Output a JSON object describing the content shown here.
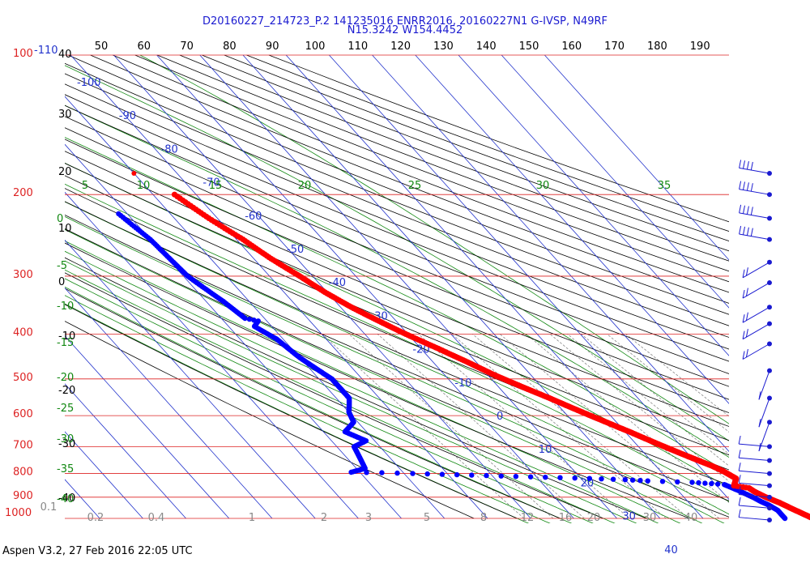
{
  "header": {
    "line1": "D20160227_214723_P.2 141235016 ENRR2016, 20160227N1 G-IVSP, N49RF",
    "line2": "N15.3242 W154.4452"
  },
  "footer": "Aspen V3.2, 27 Feb 2016  22:05 UTC",
  "colors": {
    "isobar": "#dd2222",
    "isotherm": "#2233cc",
    "dry_adiabat": "#000000",
    "moist_adiabat": "#118811",
    "mixing_ratio": "#888888",
    "temperature": "#ff0000",
    "dewpoint": "#0000ff",
    "wind": "#1a1ad0"
  },
  "chart_data": {
    "type": "skew-t log-p",
    "pressure_levels_hpa": [
      "100",
      "200",
      "300",
      "400",
      "500",
      "600",
      "700",
      "800",
      "900",
      "1000"
    ],
    "pressure_extra_label": "-110",
    "isotherm_labels_c": [
      "-100",
      "-90",
      "-80",
      "-70",
      "-60",
      "-50",
      "-40",
      "-30",
      "-20",
      "-10",
      "0",
      "10",
      "20",
      "30",
      "40"
    ],
    "theta_labels_top": [
      "50",
      "60",
      "70",
      "80",
      "90",
      "100",
      "110",
      "120",
      "130",
      "140",
      "150",
      "160",
      "170",
      "180",
      "190"
    ],
    "left_axis_labels": [
      "40",
      "30",
      "20",
      "10",
      "0",
      "-10",
      "-20",
      "-30",
      "-40"
    ],
    "moist_adiabat_labels_top": [
      "5",
      "10",
      "15",
      "20",
      "25",
      "30",
      "35"
    ],
    "moist_adiabat_labels_left": [
      "0",
      "-5",
      "-10",
      "-15",
      "-20",
      "-25",
      "-30",
      "-35",
      "-40"
    ],
    "mixing_ratio_labels": [
      "0.1",
      "0.2",
      "0.4",
      "1",
      "2",
      "3",
      "5",
      "8",
      "12",
      "16",
      "20",
      "30",
      "40"
    ],
    "temperature_profile": [
      [
        200,
        -55
      ],
      [
        225,
        -52
      ],
      [
        250,
        -48.5
      ],
      [
        275,
        -46
      ],
      [
        300,
        -43
      ],
      [
        325,
        -40.5
      ],
      [
        350,
        -37.5
      ],
      [
        375,
        -34
      ],
      [
        400,
        -30.5
      ],
      [
        430,
        -26
      ],
      [
        460,
        -22
      ],
      [
        490,
        -18.5
      ],
      [
        520,
        -14.5
      ],
      [
        550,
        -10.5
      ],
      [
        580,
        -7
      ],
      [
        610,
        -3.5
      ],
      [
        650,
        1
      ],
      [
        690,
        5
      ],
      [
        730,
        9
      ],
      [
        770,
        13
      ],
      [
        790,
        14.5
      ],
      [
        820,
        16
      ],
      [
        850,
        14
      ],
      [
        860,
        17
      ],
      [
        875,
        17.5
      ],
      [
        900,
        19
      ],
      [
        925,
        21
      ],
      [
        950,
        22.5
      ],
      [
        975,
        24
      ],
      [
        1000,
        25.5
      ]
    ],
    "dewpoint_profile": [
      [
        220,
        -72
      ],
      [
        250,
        -70
      ],
      [
        300,
        -69
      ],
      [
        340,
        -66
      ],
      [
        370,
        -64.5
      ],
      [
        375,
        -62
      ],
      [
        385,
        -64
      ],
      [
        410,
        -61.5
      ],
      [
        450,
        -60
      ],
      [
        500,
        -57
      ],
      [
        550,
        -57
      ],
      [
        590,
        -60
      ],
      [
        620,
        -61
      ],
      [
        650,
        -65
      ],
      [
        680,
        -62
      ],
      [
        700,
        -66
      ],
      [
        740,
        -67
      ],
      [
        780,
        -68
      ],
      [
        795,
        -72
      ],
      [
        797,
        -65
      ],
      [
        800,
        -58
      ],
      [
        805,
        -48
      ],
      [
        810,
        -38
      ],
      [
        815,
        -28
      ],
      [
        820,
        -18
      ],
      [
        825,
        -10
      ],
      [
        830,
        -5
      ],
      [
        836,
        5
      ],
      [
        845,
        12
      ],
      [
        870,
        14
      ],
      [
        900,
        16
      ],
      [
        920,
        17
      ],
      [
        935,
        18
      ],
      [
        960,
        19
      ],
      [
        990,
        19
      ],
      [
        1000,
        19
      ]
    ],
    "early_temperature_point": [
      180,
      -60
    ],
    "wind_barb_levels_hpa": [
      180,
      200,
      225,
      250,
      280,
      310,
      350,
      380,
      420,
      480,
      550,
      620,
      700,
      750,
      800,
      850,
      900,
      950,
      1000
    ]
  }
}
